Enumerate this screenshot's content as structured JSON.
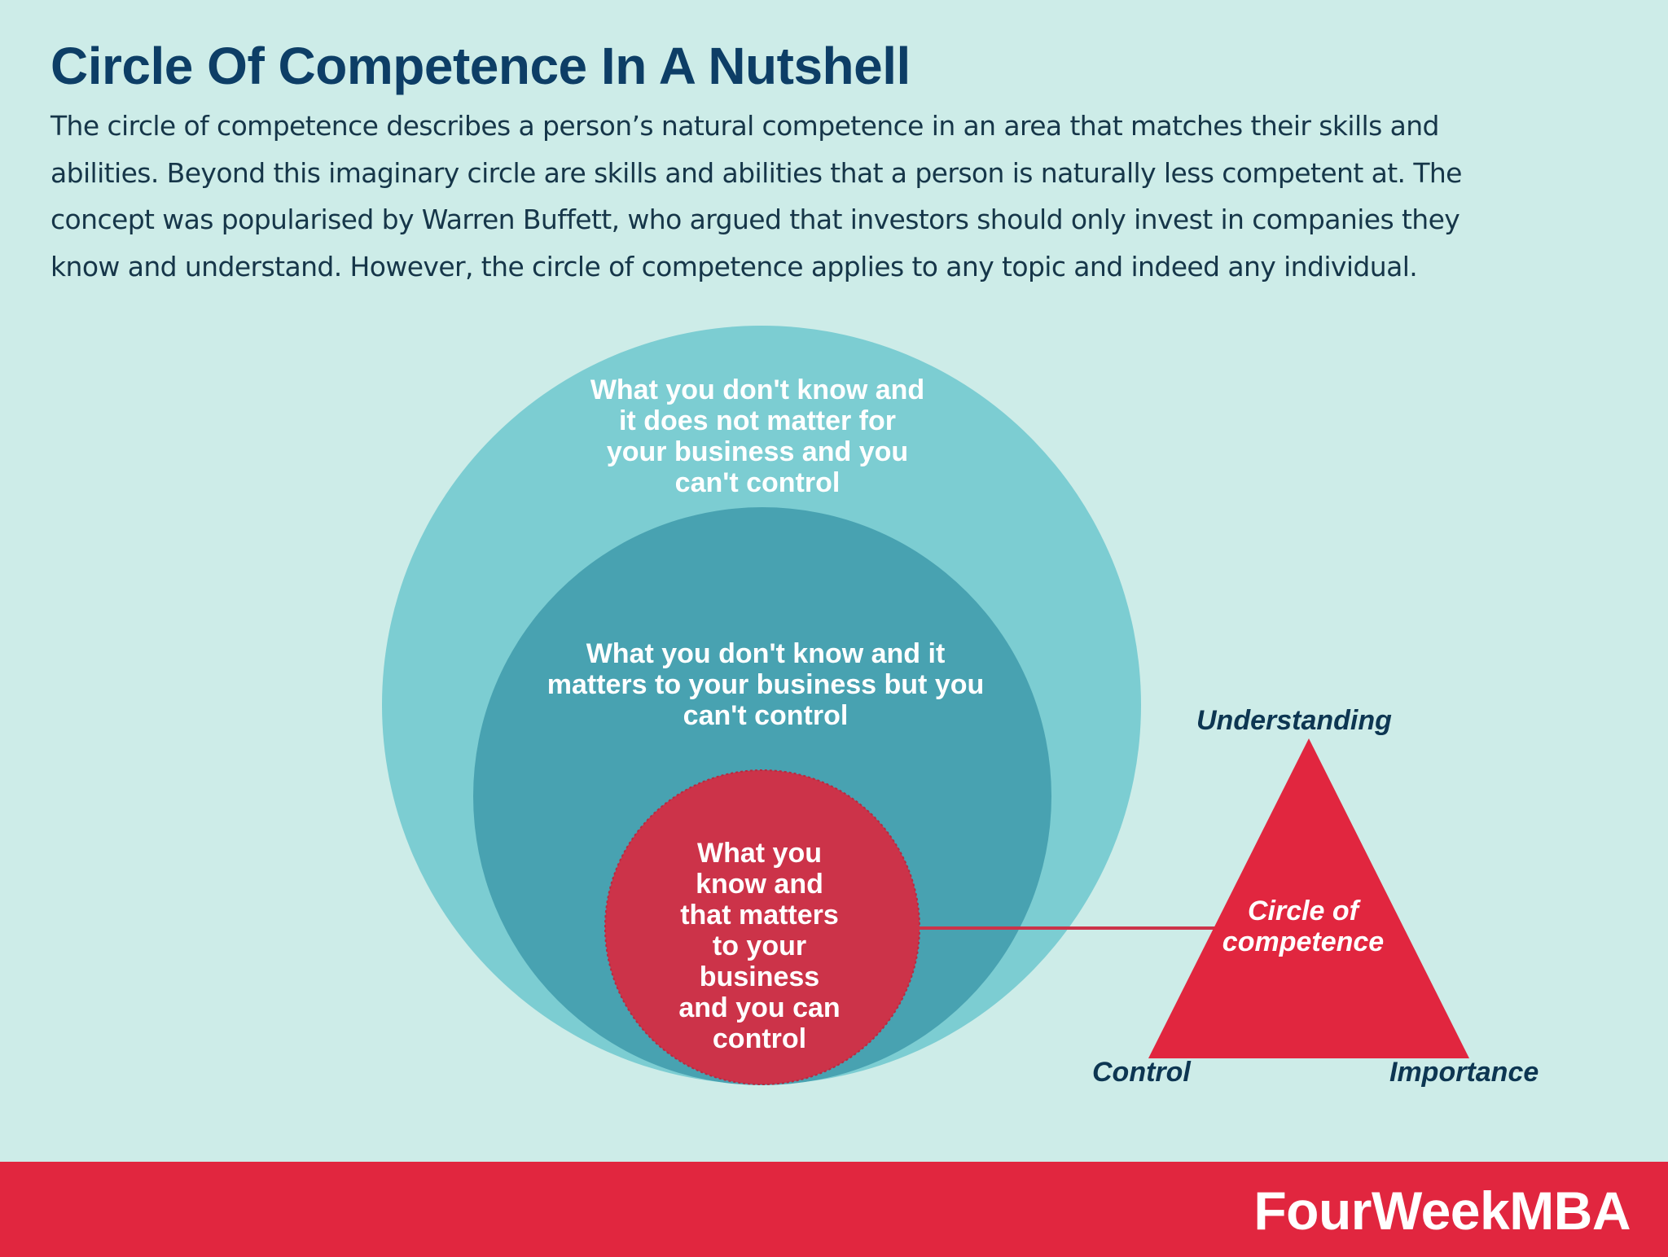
{
  "header": {
    "title": "Circle Of Competence In A Nutshell",
    "description": "The circle of competence describes a person’s natural competence in an area that matches their skills and abilities. Beyond this imaginary circle are skills and abilities that a person is naturally less competent at. The concept was popularised by Warren Buffett, who argued that investors should only invest in companies they know and understand. However, the circle of competence applies to any topic and indeed any individual."
  },
  "diagram": {
    "outer_circle_label": "What you don't know and\nit does not matter for\nyour business and you\ncan't control",
    "middle_circle_label": "What you don't know and it\nmatters to your business but you\ncan't control",
    "inner_circle_label": "What you\nknow and\nthat matters\nto your\nbusiness\nand you can\ncontrol",
    "triangle": {
      "center_label": "Circle of\ncompetence",
      "top_label": "Understanding",
      "bottom_left_label": "Control",
      "bottom_right_label": "Importance"
    },
    "colors": {
      "outer": "#7ccdd2",
      "middle": "#48a2b1",
      "inner": "#cc3349",
      "triangle": "#e1263f",
      "connector": "#cc3349"
    }
  },
  "footer": {
    "brand": "FourWeekMBA"
  }
}
